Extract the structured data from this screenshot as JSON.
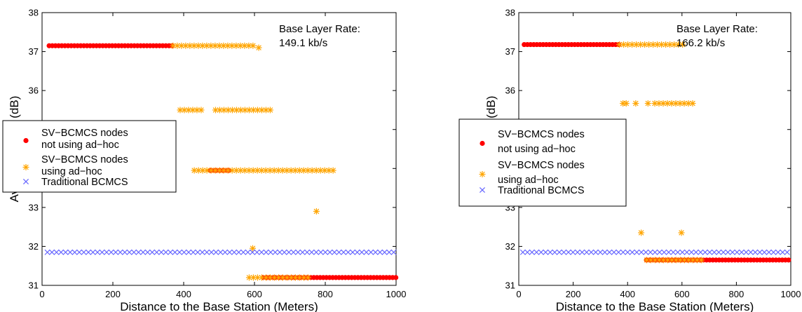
{
  "chart_data": [
    {
      "type": "scatter",
      "xlabel": "Distance to the Base Station (Meters)",
      "ylabel": "Average PSNR (dB)",
      "xlim": [
        0,
        1000
      ],
      "ylim": [
        31,
        38
      ],
      "xticks": [
        "0",
        "200",
        "400",
        "600",
        "800",
        "1000"
      ],
      "yticks": [
        "31",
        "32",
        "33",
        "34",
        "35",
        "36",
        "37",
        "38"
      ],
      "annotation": [
        "Base Layer Rate:",
        "149.1 kb/s"
      ],
      "legend_position": "middle-left",
      "series": [
        {
          "name": "SV-BCMCS nodes not using ad-hoc",
          "color": "#ff0000",
          "marker": "dot",
          "clusters": [
            {
              "x_range": [
                20,
                375
              ],
              "y": 37.15
            },
            {
              "x_range": [
                475,
                530
              ],
              "y": 33.95
            },
            {
              "x_range": [
                625,
                1000
              ],
              "y": 31.2
            }
          ]
        },
        {
          "name": "SV-BCMCS nodes using ad-hoc",
          "color": "#ffa500",
          "marker": "asterisk",
          "clusters": [
            {
              "x_range": [
                370,
                600
              ],
              "y": 37.15
            },
            {
              "x_range": [
                390,
                460
              ],
              "y": 35.5
            },
            {
              "x_range": [
                490,
                645
              ],
              "y": 35.5
            },
            {
              "x_range": [
                430,
                830
              ],
              "y": 33.95
            },
            {
              "x_range": [
                585,
                760
              ],
              "y": 31.2
            }
          ],
          "points": [
            {
              "x": 612,
              "y": 37.1
            },
            {
              "x": 775,
              "y": 32.9
            },
            {
              "x": 595,
              "y": 31.95
            }
          ]
        },
        {
          "name": "Traditional BCMCS",
          "color": "#6666ff",
          "marker": "x",
          "clusters": [
            {
              "x_range": [
                15,
                1000
              ],
              "y": 31.85
            }
          ]
        }
      ]
    },
    {
      "type": "scatter",
      "xlabel": "Distance to the Base Station (Meters)",
      "ylabel": "Average PSNR (dB)",
      "xlim": [
        0,
        1000
      ],
      "ylim": [
        31,
        38
      ],
      "xticks": [
        "0",
        "200",
        "400",
        "600",
        "800",
        "1000"
      ],
      "yticks": [
        "31",
        "32",
        "33",
        "34",
        "35",
        "36",
        "37",
        "38"
      ],
      "annotation": [
        "Base Layer Rate:",
        "166.2 kb/s"
      ],
      "legend_position": "middle-left",
      "series": [
        {
          "name": "SV-BCMCS nodes not using ad-hoc",
          "color": "#ff0000",
          "marker": "dot",
          "clusters": [
            {
              "x_range": [
                20,
                375
              ],
              "y": 37.18
            },
            {
              "x_range": [
                470,
                1000
              ],
              "y": 31.65
            }
          ]
        },
        {
          "name": "SV-BCMCS nodes using ad-hoc",
          "color": "#ffa500",
          "marker": "asterisk",
          "clusters": [
            {
              "x_range": [
                370,
                605
              ],
              "y": 37.18
            },
            {
              "x_range": [
                500,
                645
              ],
              "y": 35.67
            },
            {
              "x_range": [
                470,
                680
              ],
              "y": 31.65
            }
          ],
          "points": [
            {
              "x": 383,
              "y": 35.67
            },
            {
              "x": 395,
              "y": 35.67
            },
            {
              "x": 430,
              "y": 35.67
            },
            {
              "x": 475,
              "y": 35.67
            },
            {
              "x": 450,
              "y": 32.35
            },
            {
              "x": 598,
              "y": 32.35
            }
          ]
        },
        {
          "name": "Traditional BCMCS",
          "color": "#6666ff",
          "marker": "x",
          "clusters": [
            {
              "x_range": [
                15,
                1000
              ],
              "y": 31.85
            }
          ]
        }
      ]
    }
  ]
}
